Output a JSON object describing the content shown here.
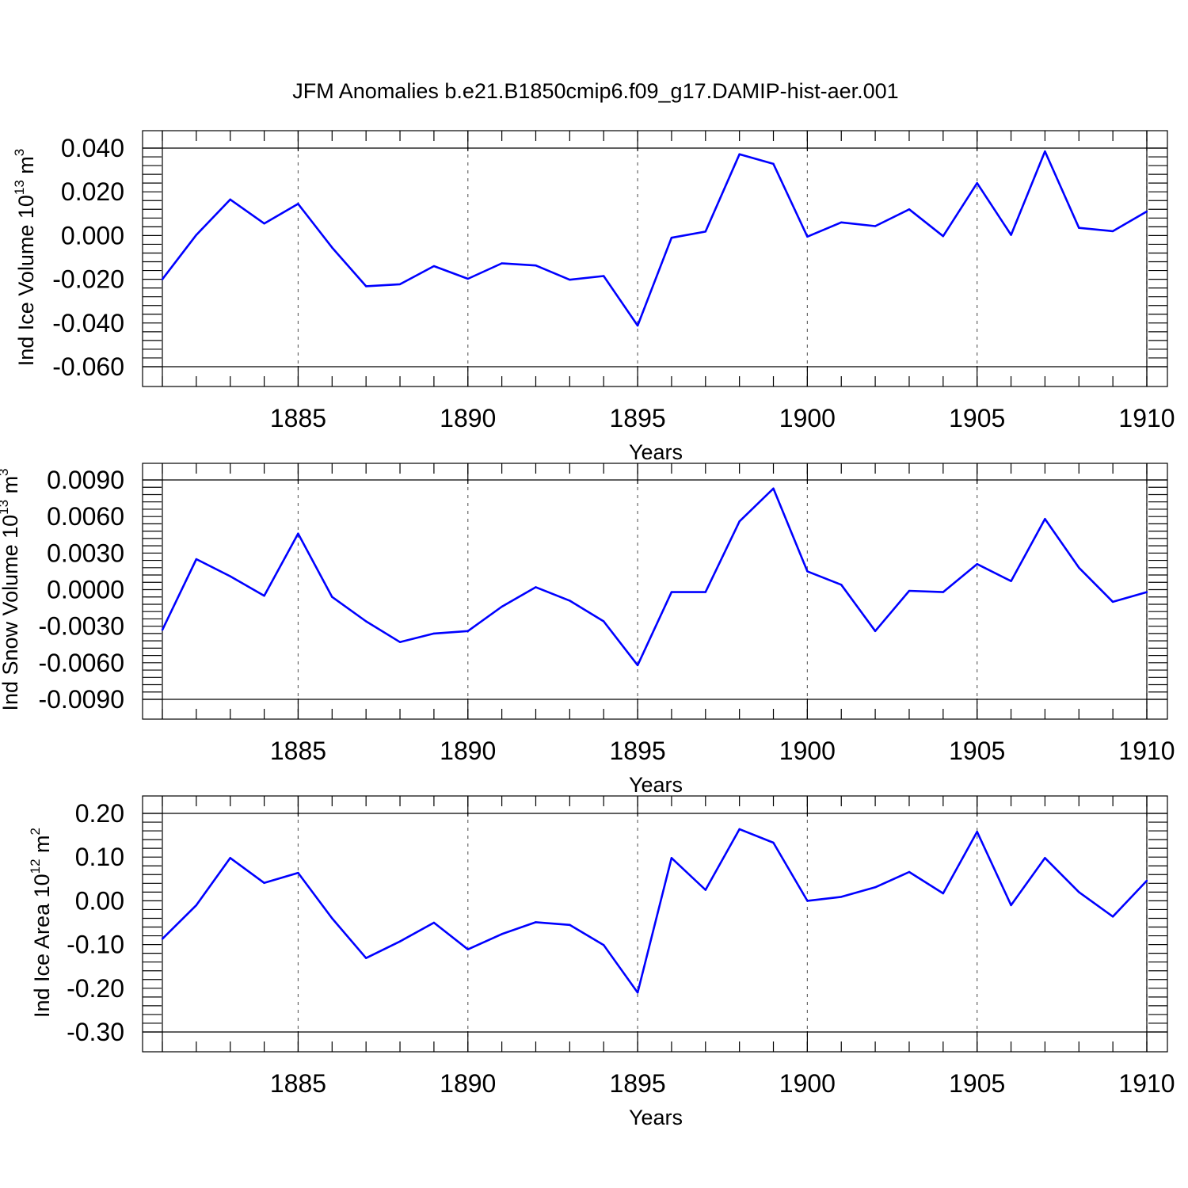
{
  "title": "JFM Anomalies b.e21.B1850cmip6.f09_g17.DAMIP-hist-aer.001",
  "colors": {
    "line": "#0000ff",
    "axes": "#000000",
    "grid": "#666666"
  },
  "chart_data": [
    {
      "type": "line",
      "ylabel": {
        "text": "Ind Ice Volume 10",
        "exponent": "13",
        "unit": " m",
        "unit_exponent": "3"
      },
      "xlabel": "Years",
      "xlim": [
        1881,
        1910
      ],
      "ylim": [
        -0.06,
        0.04
      ],
      "yticks": [
        -0.06,
        -0.04,
        -0.02,
        0.0,
        0.02,
        0.04
      ],
      "ytick_labels": [
        "-0.060",
        "-0.040",
        "-0.020",
        "0.000",
        "0.020",
        "0.040"
      ],
      "xticks": [
        1885,
        1890,
        1895,
        1900,
        1905,
        1910
      ],
      "xtick_labels": [
        "1885",
        "1890",
        "1895",
        "1900",
        "1905",
        "1910"
      ],
      "grid": "dashed vertical at major x ticks",
      "x": [
        1881,
        1882,
        1883,
        1884,
        1885,
        1886,
        1887,
        1888,
        1889,
        1890,
        1891,
        1892,
        1893,
        1894,
        1895,
        1896,
        1897,
        1898,
        1899,
        1900,
        1901,
        1902,
        1903,
        1904,
        1905,
        1906,
        1907,
        1908,
        1909,
        1910
      ],
      "series": [
        {
          "values": [
            -0.02,
            0.0003,
            0.0165,
            0.0055,
            0.0145,
            -0.0055,
            -0.0232,
            -0.0223,
            -0.014,
            -0.0198,
            -0.0127,
            -0.0137,
            -0.0202,
            -0.0185,
            -0.0412,
            -0.001,
            0.0018,
            0.0372,
            0.0328,
            -0.0005,
            0.006,
            0.0043,
            0.012,
            -0.0003,
            0.024,
            0.0003,
            0.0385,
            0.0035,
            0.002,
            0.011
          ]
        }
      ]
    },
    {
      "type": "line",
      "ylabel": {
        "text": "Ind Snow Volume 10",
        "exponent": "13",
        "unit": " m",
        "unit_exponent": "3"
      },
      "xlabel": "Years",
      "xlim": [
        1881,
        1910
      ],
      "ylim": [
        -0.009,
        0.009
      ],
      "yticks": [
        -0.009,
        -0.006,
        -0.003,
        0.0,
        0.003,
        0.006,
        0.009
      ],
      "ytick_labels": [
        "-0.0090",
        "-0.0060",
        "-0.0030",
        "0.0000",
        "0.0030",
        "0.0060",
        "0.0090"
      ],
      "xticks": [
        1885,
        1890,
        1895,
        1900,
        1905,
        1910
      ],
      "xtick_labels": [
        "1885",
        "1890",
        "1895",
        "1900",
        "1905",
        "1910"
      ],
      "grid": "dashed vertical at major x ticks",
      "x": [
        1881,
        1882,
        1883,
        1884,
        1885,
        1886,
        1887,
        1888,
        1889,
        1890,
        1891,
        1892,
        1893,
        1894,
        1895,
        1896,
        1897,
        1898,
        1899,
        1900,
        1901,
        1902,
        1903,
        1904,
        1905,
        1906,
        1907,
        1908,
        1909,
        1910
      ],
      "series": [
        {
          "values": [
            -0.0033,
            0.0025,
            0.0011,
            -0.0005,
            0.0046,
            -0.0006,
            -0.0026,
            -0.0043,
            -0.0036,
            -0.0034,
            -0.0014,
            0.0002,
            -0.0009,
            -0.0026,
            -0.0062,
            -0.0002,
            -0.0002,
            0.0056,
            0.0083,
            0.0015,
            0.0004,
            -0.0034,
            -0.0001,
            -0.0002,
            0.0021,
            0.0007,
            0.0058,
            0.0018,
            -0.001,
            -0.0002
          ]
        }
      ]
    },
    {
      "type": "line",
      "ylabel": {
        "text": "Ind Ice Area 10",
        "exponent": "12",
        "unit": " m",
        "unit_exponent": "2"
      },
      "xlabel": "Years",
      "xlim": [
        1881,
        1910
      ],
      "ylim": [
        -0.3,
        0.2
      ],
      "yticks": [
        -0.3,
        -0.2,
        -0.1,
        0.0,
        0.1,
        0.2
      ],
      "ytick_labels": [
        "-0.30",
        "-0.20",
        "-0.10",
        "0.00",
        "0.10",
        "0.20"
      ],
      "xticks": [
        1885,
        1890,
        1895,
        1900,
        1905,
        1910
      ],
      "xtick_labels": [
        "1885",
        "1890",
        "1895",
        "1900",
        "1905",
        "1910"
      ],
      "grid": "dashed vertical at major x ticks",
      "x": [
        1881,
        1882,
        1883,
        1884,
        1885,
        1886,
        1887,
        1888,
        1889,
        1890,
        1891,
        1892,
        1893,
        1894,
        1895,
        1896,
        1897,
        1898,
        1899,
        1900,
        1901,
        1902,
        1903,
        1904,
        1905,
        1906,
        1907,
        1908,
        1909,
        1910
      ],
      "series": [
        {
          "values": [
            -0.087,
            -0.01,
            0.098,
            0.041,
            0.064,
            -0.04,
            -0.131,
            -0.093,
            -0.05,
            -0.111,
            -0.076,
            -0.049,
            -0.055,
            -0.101,
            -0.21,
            0.098,
            0.025,
            0.164,
            0.133,
            0.0,
            0.009,
            0.031,
            0.066,
            0.017,
            0.158,
            -0.01,
            0.098,
            0.02,
            -0.036,
            0.046
          ]
        }
      ]
    }
  ]
}
